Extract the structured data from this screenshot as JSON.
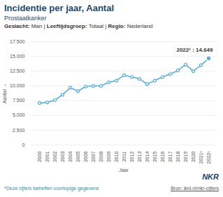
{
  "chart_data": {
    "type": "line",
    "title": "Incidentie per jaar, Aantal",
    "subtitle": "Prostaatkanker",
    "filters": "Geslacht: Man | Leeftijdsgroep: Totaal | Regio: Nederland",
    "x_label": "Jaar",
    "y_label": "Aantal",
    "categories": [
      "2000",
      "2001",
      "2002",
      "2003",
      "2004",
      "2005",
      "2006",
      "2007",
      "2008",
      "2009",
      "2010",
      "2011",
      "2012",
      "2013",
      "2014",
      "2015",
      "2016",
      "2017",
      "2018",
      "2019",
      "2020",
      "2021¹",
      "2022¹"
    ],
    "values": [
      7100,
      7200,
      7600,
      8500,
      9700,
      9100,
      9900,
      10000,
      10000,
      10600,
      10900,
      11800,
      11500,
      11200,
      10300,
      10900,
      11500,
      12000,
      12600,
      13600,
      12500,
      13500,
      14649
    ],
    "color": "#58aee0",
    "marker": "circle",
    "ylim": [
      0,
      17500
    ],
    "yticks": [
      0,
      {
        "value": 2500,
        "label": "2.500"
      },
      {
        "value": 5000,
        "label": "5.000"
      },
      {
        "value": 7500,
        "label": "7.500"
      },
      {
        "value": 10000,
        "label": "10.000"
      },
      {
        "value": 12500,
        "label": "12.500"
      },
      {
        "value": 15000,
        "label": "15.000"
      },
      {
        "value": 17500,
        "label": "17.500"
      }
    ],
    "grid": true,
    "annotations": [
      {
        "x": "2022¹",
        "y": 14649,
        "label": "2022¹ : 14.649"
      }
    ],
    "logo": "NKR",
    "footnote": "*Deze cijfers betreffen voorlopige gegevens",
    "source": "Bron: iknl.nl/nkr-cijfers"
  }
}
